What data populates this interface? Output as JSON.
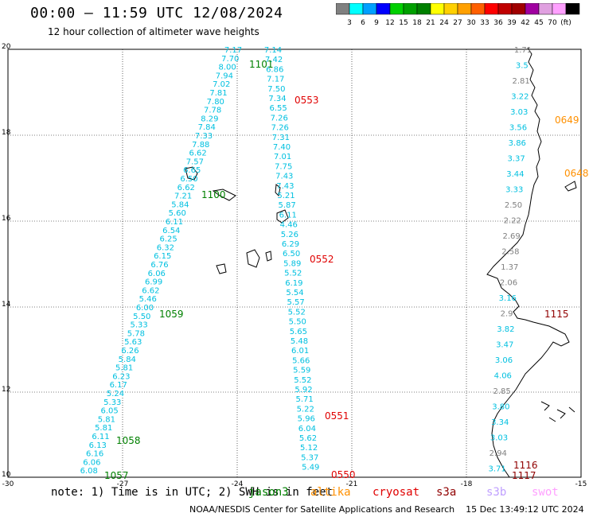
{
  "header": {
    "title": "00:00 – 11:59 UTC 12/08/2024",
    "subtitle": "12 hour collection of altimeter wave heights"
  },
  "colorbar": {
    "labels": [
      "3",
      "6",
      "9",
      "12",
      "15",
      "18",
      "21",
      "24",
      "27",
      "30",
      "33",
      "36",
      "39",
      "42",
      "45",
      "70",
      "(ft)"
    ],
    "colors": [
      "#808080",
      "#00ffff",
      "#00a0ff",
      "#0000ff",
      "#00d000",
      "#00a000",
      "#008000",
      "#ffff00",
      "#ffd000",
      "#ffa000",
      "#ff6000",
      "#ff0000",
      "#c00000",
      "#a00000",
      "#a000a0",
      "#e0a0e0",
      "#ffa0ff",
      "#000000"
    ]
  },
  "axes": {
    "y_labels": [
      "20",
      "18",
      "16",
      "14",
      "12",
      "10"
    ],
    "x_labels": [
      "-30",
      "-27",
      "-24",
      "-21",
      "-18",
      "-15"
    ]
  },
  "passes": {
    "jason3_left": {
      "color": "#00c0e0",
      "values": [
        "7.17",
        "7.70",
        "8.00",
        "7.94",
        "7.02",
        "7.81",
        "7.80",
        "7.78",
        "8.29",
        "7.84",
        "7.33",
        "7.88",
        "6.62",
        "7.57",
        "6.65",
        "6.50",
        "6.62",
        "7.21",
        "5.84",
        "5.60",
        "6.11",
        "6.54",
        "6.25",
        "6.32",
        "6.15",
        "6.76",
        "6.06",
        "6.99",
        "6.62",
        "5.46",
        "6.00",
        "5.50",
        "5.33",
        "5.78",
        "5.63",
        "6.26",
        "5.84",
        "5.81",
        "6.23",
        "6.17",
        "5.24",
        "5.33",
        "6.05",
        "5.81",
        "5.81",
        "6.11",
        "6.13",
        "6.16",
        "6.06",
        "6.08"
      ]
    },
    "jason3_right": {
      "color": "#00c0e0",
      "values": [
        "7.14",
        "7.42",
        "6.86",
        "7.17",
        "7.50",
        "7.34",
        "6.55",
        "7.26",
        "7.26",
        "7.31",
        "7.40",
        "7.01",
        "7.75",
        "7.43",
        "7.43",
        "5.21",
        "5.87",
        "6.11",
        "4.46",
        "5.26",
        "6.29",
        "6.50",
        "5.89",
        "5.52",
        "6.19",
        "5.54",
        "5.57",
        "5.52",
        "5.50",
        "5.65",
        "5.48",
        "6.01",
        "5.66",
        "5.59",
        "5.52",
        "5.92",
        "5.71",
        "5.22",
        "5.96",
        "6.04",
        "5.62",
        "5.12",
        "5.37",
        "5.49"
      ]
    },
    "coastal": {
      "values": [
        "1.71",
        "3.5",
        "2.81",
        "3.22",
        "3.03",
        "3.56",
        "3.86",
        "3.37",
        "3.44",
        "3.33",
        "2.50",
        "2.22",
        "2.69",
        "2.58",
        "1.37",
        "2.06",
        "3.16",
        "2.9",
        "3.82",
        "3.47",
        "3.06",
        "4.06",
        "2.85",
        "3.80",
        "3.34",
        "3.03",
        "2.94",
        "3.71"
      ],
      "colors": [
        "#808080",
        "#00c0e0",
        "#808080",
        "#00c0e0",
        "#00c0e0",
        "#00c0e0",
        "#00c0e0",
        "#00c0e0",
        "#00c0e0",
        "#00c0e0",
        "#808080",
        "#808080",
        "#808080",
        "#808080",
        "#808080",
        "#808080",
        "#00c0e0",
        "#808080",
        "#00c0e0",
        "#00c0e0",
        "#00c0e0",
        "#00c0e0",
        "#808080",
        "#00c0e0",
        "#00c0e0",
        "#00c0e0",
        "#808080",
        "#00c0e0"
      ]
    }
  },
  "time_labels": [
    {
      "text": "1101",
      "color": "#008000"
    },
    {
      "text": "1100",
      "color": "#008000"
    },
    {
      "text": "1059",
      "color": "#008000"
    },
    {
      "text": "1058",
      "color": "#008000"
    },
    {
      "text": "1057",
      "color": "#008000"
    },
    {
      "text": "0553",
      "color": "#e00000"
    },
    {
      "text": "0552",
      "color": "#e00000"
    },
    {
      "text": "0551",
      "color": "#e00000"
    },
    {
      "text": "0550",
      "color": "#e00000"
    },
    {
      "text": "0649",
      "color": "#ff9000"
    },
    {
      "text": "0648",
      "color": "#ff9000"
    },
    {
      "text": "1115",
      "color": "#900000"
    },
    {
      "text": "1116",
      "color": "#900000"
    },
    {
      "text": "1117",
      "color": "#900000"
    }
  ],
  "notes": {
    "note": "note: 1) Time is in UTC; 2) SWH is in feet",
    "jason3": "jason3",
    "altika": "altika",
    "cryosat": "cryosat",
    "s3a": "s3a",
    "s3b": "s3b",
    "swot": "swot",
    "jason3_color": "#008000",
    "altika_color": "#ff9000",
    "cryosat_color": "#e00000",
    "s3a_color": "#900000",
    "s3b_color": "#c0a0ff",
    "swot_color": "#ffa0ff"
  },
  "footer": "NOAA/NESDIS Center for Satellite Applications and Research    15 Dec 13:49:12 UTC 2024"
}
